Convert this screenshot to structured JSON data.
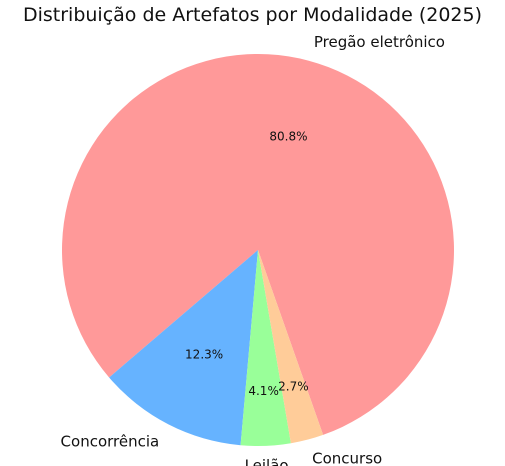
{
  "chart_data": {
    "type": "pie",
    "title": "Distribuição de Artefatos por Modalidade (2025)",
    "slices": [
      {
        "label": "Pregão eletrônico",
        "value": 80.8,
        "pct_label": "80.8%",
        "color": "#ff9999"
      },
      {
        "label": "Concorrência",
        "value": 12.3,
        "pct_label": "12.3%",
        "color": "#66b3ff"
      },
      {
        "label": "Leilão",
        "value": 4.1,
        "pct_label": "4.1%",
        "color": "#99ff99"
      },
      {
        "label": "Concurso",
        "value": 2.7,
        "pct_label": "2.7%",
        "color": "#ffcc99"
      }
    ],
    "legend": "none"
  }
}
